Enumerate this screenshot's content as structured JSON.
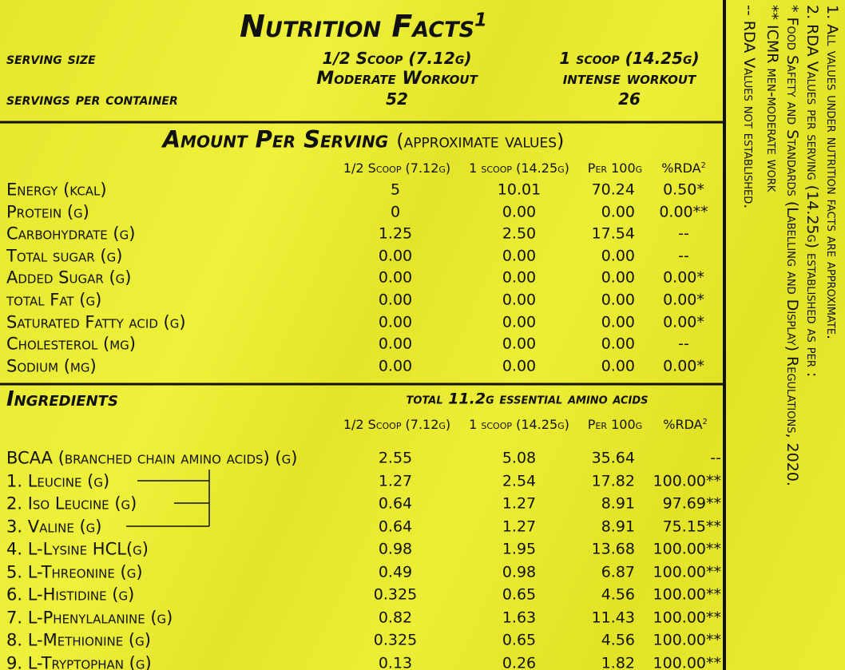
{
  "header": {
    "title": "Nutrition Facts",
    "title_note": "1",
    "serving_size_label": "serving size",
    "servings_per_container_label": "servings per container",
    "options": [
      {
        "size": "1/2 Scoop (7.12g)",
        "workout": "Moderate Workout",
        "servings": "52"
      },
      {
        "size": "1 scoop (14.25g)",
        "workout": "intense workout",
        "servings": "26"
      }
    ]
  },
  "amount": {
    "title": "Amount Per Serving",
    "subtitle": "(approximate values)",
    "columns": [
      "1/2 Scoop (7.12g)",
      "1 scoop (14.25g)",
      "Per 100g",
      "%RDA"
    ],
    "rda_note": "2",
    "rows": [
      [
        "Energy (kcal)",
        "5",
        "10.01",
        "70.24",
        "0.50*"
      ],
      [
        "Protein (g)",
        "0",
        "0.00",
        "0.00",
        "0.00**"
      ],
      [
        "Carbohydrate (g)",
        "1.25",
        "2.50",
        "17.54",
        "--"
      ],
      [
        "Total sugar (g)",
        "0.00",
        "0.00",
        "0.00",
        "--"
      ],
      [
        "Added Sugar (g)",
        "0.00",
        "0.00",
        "0.00",
        "0.00*"
      ],
      [
        "total Fat (g)",
        "0.00",
        "0.00",
        "0.00",
        "0.00*"
      ],
      [
        "Saturated Fatty acid (g)",
        "0.00",
        "0.00",
        "0.00",
        "0.00*"
      ],
      [
        "Cholesterol (mg)",
        "0.00",
        "0.00",
        "0.00",
        "--"
      ],
      [
        "Sodium (mg)",
        "0.00",
        "0.00",
        "0.00",
        "0.00*"
      ]
    ]
  },
  "ingredients": {
    "title": "Ingredients",
    "subtitle": "total 11.2g essential amino acids",
    "columns": [
      "1/2 Scoop (7.12g)",
      "1 scoop (14.25g)",
      "Per 100g",
      "%RDA"
    ],
    "rda_note": "2",
    "rows": [
      [
        "BCAA (branched chain amino acids) (g)",
        "2.55",
        "5.08",
        "35.64",
        "--"
      ],
      [
        "1. Leucine (g)",
        "1.27",
        "2.54",
        "17.82",
        "100.00**"
      ],
      [
        "2. Iso Leucine (g)",
        "0.64",
        "1.27",
        "8.91",
        "97.69**"
      ],
      [
        "3. Valine (g)",
        "0.64",
        "1.27",
        "8.91",
        "75.15**"
      ],
      [
        "4. L-Lysine HCL(g)",
        "0.98",
        "1.95",
        "13.68",
        "100.00**"
      ],
      [
        "5. L-Threonine (g)",
        "0.49",
        "0.98",
        "6.87",
        "100.00**"
      ],
      [
        "6. L-Histidine (g)",
        "0.325",
        "0.65",
        "4.56",
        "100.00**"
      ],
      [
        "7. L-Phenylalanine (g)",
        "0.82",
        "1.63",
        "11.43",
        "100.00**"
      ],
      [
        "8. L-Methionine (g)",
        "0.325",
        "0.65",
        "4.56",
        "100.00**"
      ],
      [
        "9. L-Tryptophan (g)",
        "0.13",
        "0.26",
        "1.82",
        "100.00**"
      ]
    ]
  },
  "notes": [
    "1. All values under nutrition facts are approximate.",
    "2. RDA Values per serving (14.25g) established as per :",
    "* Food Safety and Standards (Labelling and Display) Regulations, 2020.",
    "** ICMR men-moderate work",
    "-- RDA Values not established."
  ]
}
